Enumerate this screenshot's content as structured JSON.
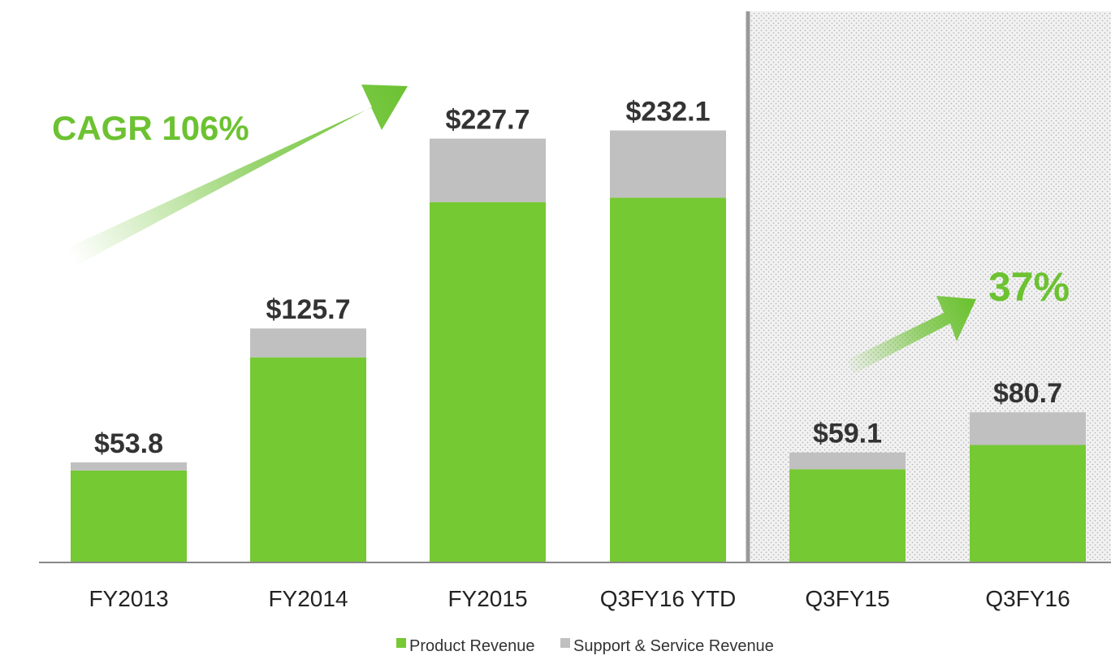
{
  "chart_data": {
    "type": "bar",
    "stacked": true,
    "categories": [
      "FY2013",
      "FY2014",
      "FY2015",
      "Q3FY16 YTD",
      "Q3FY15",
      "Q3FY16"
    ],
    "totals_labels": [
      "$53.8",
      "$125.7",
      "$227.7",
      "$232.1",
      "$59.1",
      "$80.7"
    ],
    "totals": [
      53.8,
      125.7,
      227.7,
      232.1,
      59.1,
      80.7
    ],
    "series": [
      {
        "name": "Product Revenue",
        "values": [
          49.4,
          110.2,
          193.6,
          196.0,
          50.1,
          63.1
        ],
        "color": "#75c932"
      },
      {
        "name": "Support & Service Revenue",
        "values": [
          4.4,
          15.5,
          34.1,
          36.1,
          9.0,
          17.6
        ],
        "color": "#c0c0c0"
      }
    ],
    "ylim": [
      0,
      255
    ],
    "annotations": {
      "annual_growth": "CAGR 106%",
      "quarterly_growth": "37%"
    },
    "legend_position": "bottom"
  },
  "colors": {
    "product": "#75c932",
    "support": "#c0c0c0",
    "accent": "#6cc231",
    "axis": "#888888",
    "divider": "#999999"
  }
}
